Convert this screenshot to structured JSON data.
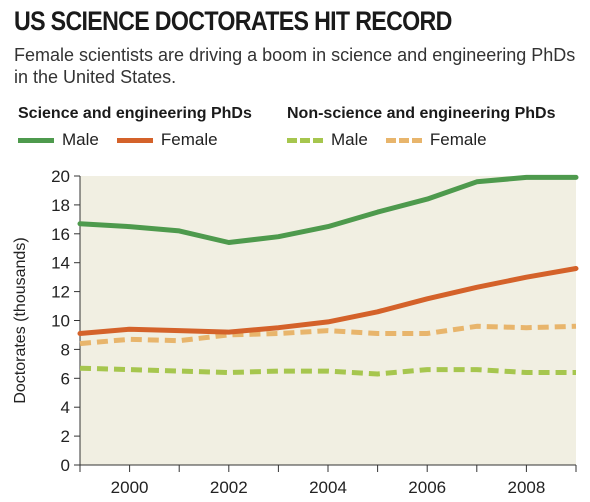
{
  "header": {
    "title": "US SCIENCE DOCTORATES HIT RECORD",
    "subtitle": "Female scientists are driving a boom in science and engineering PhDs in the United States."
  },
  "legend": {
    "groups": [
      {
        "title": "Science and engineering PhDs",
        "items": [
          {
            "label": "Male",
            "color": "#4e9a4d",
            "style": "solid"
          },
          {
            "label": "Female",
            "color": "#d4622a",
            "style": "solid"
          }
        ]
      },
      {
        "title": "Non-science and engineering PhDs",
        "items": [
          {
            "label": "Male",
            "color": "#a6c64e",
            "style": "dashed"
          },
          {
            "label": "Female",
            "color": "#e8b56c",
            "style": "dashed"
          }
        ]
      }
    ]
  },
  "chart_data": {
    "type": "line",
    "title": "US SCIENCE DOCTORATES HIT RECORD",
    "subtitle": "Female scientists are driving a boom in science and engineering PhDs in the United States.",
    "xlabel": "",
    "ylabel": "Doctorates (thousands)",
    "x": [
      1999,
      2000,
      2001,
      2002,
      2003,
      2004,
      2005,
      2006,
      2007,
      2008,
      2009
    ],
    "xlim": [
      1999,
      2009
    ],
    "ylim": [
      0,
      20
    ],
    "xticks": [
      2000,
      2002,
      2004,
      2006,
      2008
    ],
    "yticks": [
      0,
      2,
      4,
      6,
      8,
      10,
      12,
      14,
      16,
      18,
      20
    ],
    "grid": false,
    "background": "#f1efe2",
    "series": [
      {
        "group": "Science and engineering PhDs",
        "name": "Male",
        "color": "#4e9a4d",
        "dashed": false,
        "values": [
          16.7,
          16.5,
          16.2,
          15.4,
          15.8,
          16.5,
          17.5,
          18.4,
          19.6,
          19.9,
          19.9
        ]
      },
      {
        "group": "Science and engineering PhDs",
        "name": "Female",
        "color": "#d4622a",
        "dashed": false,
        "values": [
          9.1,
          9.4,
          9.3,
          9.2,
          9.5,
          9.9,
          10.6,
          11.5,
          12.3,
          13.0,
          13.6
        ]
      },
      {
        "group": "Non-science and engineering PhDs",
        "name": "Male",
        "color": "#a6c64e",
        "dashed": true,
        "values": [
          6.7,
          6.6,
          6.5,
          6.4,
          6.5,
          6.5,
          6.3,
          6.6,
          6.6,
          6.4,
          6.4
        ]
      },
      {
        "group": "Non-science and engineering PhDs",
        "name": "Female",
        "color": "#e8b56c",
        "dashed": true,
        "values": [
          8.4,
          8.7,
          8.6,
          9.0,
          9.1,
          9.3,
          9.1,
          9.1,
          9.6,
          9.5,
          9.6
        ]
      }
    ]
  }
}
